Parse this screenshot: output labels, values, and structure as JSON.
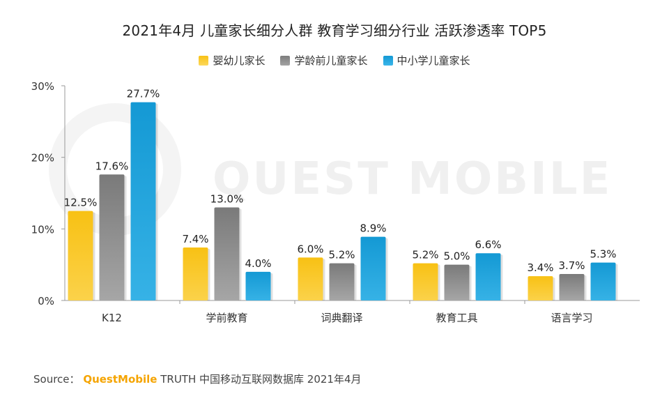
{
  "title": "2021年4月 儿童家长细分人群 教育学习细分行业 活跃渗透率 TOP5",
  "watermark": "QUEST MOBILE",
  "source": {
    "prefix": "Source：",
    "brand": "QuestMobile",
    "suffix": "TRUTH 中国移动互联网数据库 2021年4月"
  },
  "colors": {
    "series1": "#f8c114",
    "series2": "#8a8a8a",
    "series3": "#1aa3dc",
    "axis": "#999999"
  },
  "chart_data": {
    "type": "bar",
    "title": "2021年4月 儿童家长细分人群 教育学习细分行业 活跃渗透率 TOP5",
    "categories": [
      "K12",
      "学前教育",
      "词典翻译",
      "教育工具",
      "语言学习"
    ],
    "series": [
      {
        "name": "婴幼儿家长",
        "values": [
          12.5,
          7.4,
          6.0,
          5.2,
          3.4
        ]
      },
      {
        "name": "学龄前儿童家长",
        "values": [
          17.6,
          13.0,
          5.2,
          5.0,
          3.7
        ]
      },
      {
        "name": "中小学儿童家长",
        "values": [
          27.7,
          4.0,
          8.9,
          6.6,
          5.3
        ]
      }
    ],
    "yticks": [
      "0%",
      "10%",
      "20%",
      "30%"
    ],
    "ylim": [
      0,
      30
    ],
    "xlabel": "",
    "ylabel": "",
    "legend": "top-center",
    "grid": false
  }
}
